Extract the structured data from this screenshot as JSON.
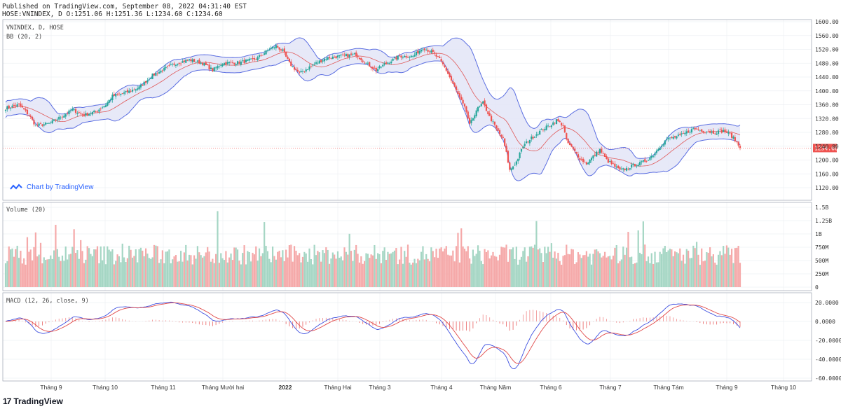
{
  "header": {
    "line1": "Published on TradingView.com, September 08, 2022 04:31:40 EST",
    "line2": "HOSE:VNINDEX, D O:1251.06 H:1251.36 L:1234.60 C:1234.60"
  },
  "panes": {
    "main_title": "VNINDEX, D, HOSE",
    "bb_label": "BB (20, 2)",
    "volume_label": "Volume (20)",
    "macd_label": "MACD (12, 26, close, 9)",
    "last_price": "1234.60"
  },
  "watermark": "Chart by TradingView",
  "footer": {
    "brand_mark": "17",
    "brand": "TradingView"
  },
  "colors": {
    "up": "#26a69a",
    "down": "#ef5350",
    "band": "#5b6ee1",
    "band_fill": "#e3e5f7",
    "basis": "#e05a5a",
    "macd": "#3f51e0",
    "signal": "#e04848",
    "vol_up": "#a5d6c4",
    "vol_down": "#f5a9a9"
  },
  "chart_data": [
    {
      "type": "candlestick",
      "title": "VNINDEX, D, HOSE",
      "overlay": "BB (20, 2)",
      "x_ticks": [
        "Tháng 9",
        "Tháng 10",
        "Tháng 11",
        "Tháng Mười hai",
        "2022",
        "Tháng Hai",
        "Tháng 3",
        "Tháng 4",
        "Tháng Năm",
        "Tháng 6",
        "Tháng 7",
        "Tháng Tám",
        "Tháng 9",
        "Tháng 10"
      ],
      "y_ticks": [
        "1600.00",
        "1560.00",
        "1520.00",
        "1480.00",
        "1440.00",
        "1400.00",
        "1360.00",
        "1320.00",
        "1280.00",
        "1240.00",
        "1200.00",
        "1160.00",
        "1120.00"
      ],
      "ylim": [
        1120,
        1600
      ],
      "last_close": 1234.6,
      "close_path": [
        [
          0,
          1350
        ],
        [
          8,
          1360
        ],
        [
          14,
          1330
        ],
        [
          18,
          1300
        ],
        [
          26,
          1305
        ],
        [
          35,
          1330
        ],
        [
          40,
          1345
        ],
        [
          47,
          1330
        ],
        [
          54,
          1340
        ],
        [
          60,
          1360
        ],
        [
          64,
          1385
        ],
        [
          72,
          1395
        ],
        [
          80,
          1410
        ],
        [
          88,
          1445
        ],
        [
          96,
          1465
        ],
        [
          102,
          1480
        ],
        [
          110,
          1490
        ],
        [
          118,
          1480
        ],
        [
          124,
          1460
        ],
        [
          130,
          1480
        ],
        [
          140,
          1482
        ],
        [
          150,
          1492
        ],
        [
          158,
          1520
        ],
        [
          162,
          1530
        ],
        [
          166,
          1515
        ],
        [
          170,
          1480
        ],
        [
          176,
          1450
        ],
        [
          184,
          1475
        ],
        [
          192,
          1495
        ],
        [
          200,
          1500
        ],
        [
          210,
          1505
        ],
        [
          216,
          1480
        ],
        [
          222,
          1460
        ],
        [
          228,
          1480
        ],
        [
          236,
          1500
        ],
        [
          244,
          1500
        ],
        [
          250,
          1525
        ],
        [
          256,
          1510
        ],
        [
          260,
          1490
        ],
        [
          264,
          1460
        ],
        [
          268,
          1420
        ],
        [
          272,
          1380
        ],
        [
          276,
          1340
        ],
        [
          278,
          1300
        ],
        [
          282,
          1345
        ],
        [
          286,
          1365
        ],
        [
          290,
          1325
        ],
        [
          294,
          1290
        ],
        [
          298,
          1260
        ],
        [
          300,
          1220
        ],
        [
          302,
          1170
        ],
        [
          306,
          1195
        ],
        [
          310,
          1240
        ],
        [
          314,
          1260
        ],
        [
          318,
          1275
        ],
        [
          322,
          1290
        ],
        [
          326,
          1300
        ],
        [
          330,
          1315
        ],
        [
          334,
          1300
        ],
        [
          336,
          1255
        ],
        [
          340,
          1230
        ],
        [
          344,
          1205
        ],
        [
          348,
          1190
        ],
        [
          352,
          1210
        ],
        [
          356,
          1230
        ],
        [
          360,
          1200
        ],
        [
          364,
          1185
        ],
        [
          368,
          1170
        ],
        [
          372,
          1175
        ],
        [
          376,
          1185
        ],
        [
          380,
          1190
        ],
        [
          384,
          1200
        ],
        [
          388,
          1215
        ],
        [
          392,
          1240
        ],
        [
          396,
          1260
        ],
        [
          400,
          1265
        ],
        [
          404,
          1270
        ],
        [
          408,
          1280
        ],
        [
          412,
          1290
        ],
        [
          418,
          1285
        ],
        [
          424,
          1280
        ],
        [
          430,
          1284
        ],
        [
          434,
          1275
        ],
        [
          438,
          1251
        ],
        [
          440,
          1234.6
        ]
      ]
    },
    {
      "type": "bar",
      "title": "Volume (20)",
      "y_ticks": [
        "1.5B",
        "1.25B",
        "1B",
        "750M",
        "500M",
        "250M",
        "0"
      ],
      "ylim": [
        0,
        1500000000
      ]
    },
    {
      "type": "line",
      "title": "MACD (12, 26, close, 9)",
      "y_ticks": [
        "20.0000",
        "0.0000",
        "-20.0000",
        "-40.0000",
        "-60.0000"
      ],
      "ylim": [
        -64,
        24
      ]
    }
  ]
}
